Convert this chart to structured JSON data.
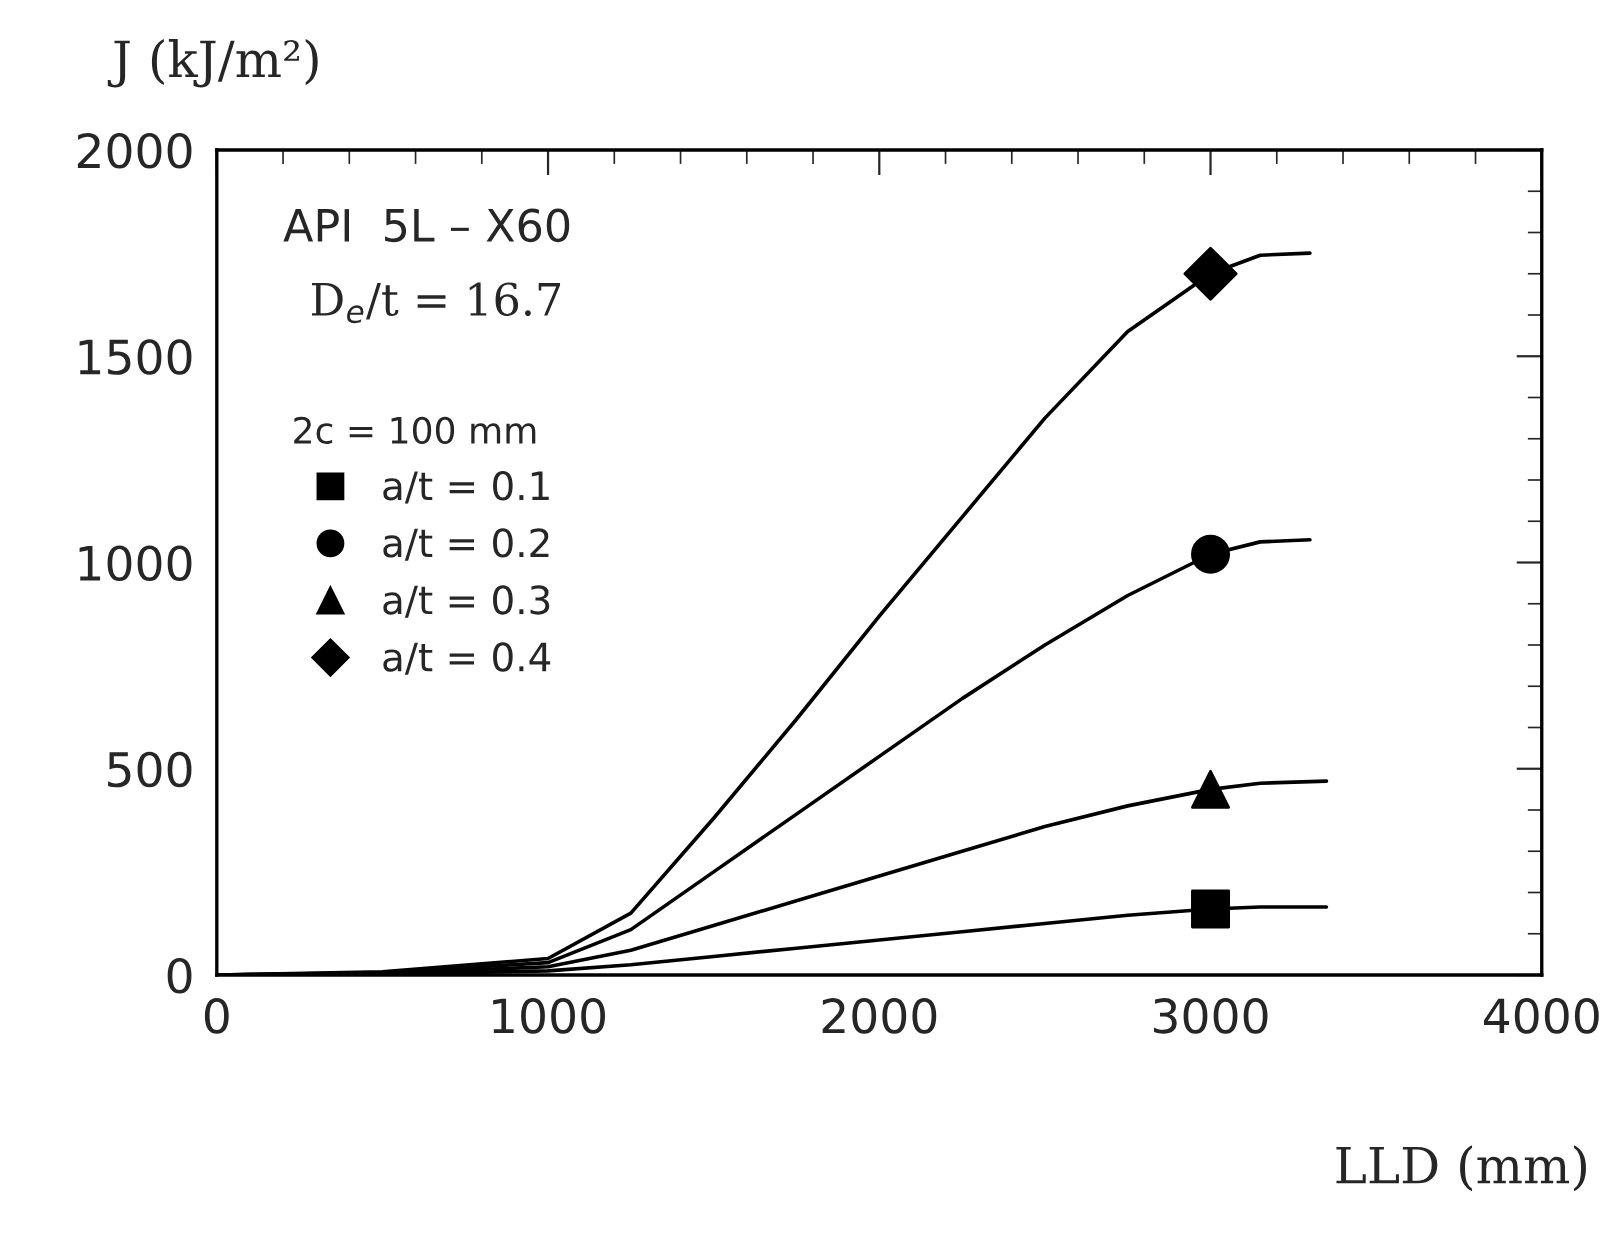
{
  "chart_data": {
    "type": "line",
    "xlabel": "LLD (mm)",
    "ylabel": "J (kJ/m²)",
    "legend_title": "2c = 100 mm",
    "xlim": [
      0,
      4000
    ],
    "xticks": [
      0,
      1000,
      2000,
      3000,
      4000
    ],
    "ylim": [
      0,
      2000
    ],
    "yticks": [
      0,
      500,
      1000,
      1500,
      2000
    ],
    "grid": false,
    "legend": "left",
    "annotations": [
      "API  5L – X60",
      "D$_{e}$/t = 16.7"
    ],
    "series": [
      {
        "color": "#000000",
        "x": [
          0,
          500,
          1000,
          1250,
          1500,
          1750,
          2000,
          2250,
          2500,
          2750,
          3000,
          3150,
          3350
        ],
        "values": [
          0,
          2,
          10,
          25,
          45,
          65,
          85,
          105,
          125,
          145,
          160,
          165,
          165
        ]
      },
      {
        "color": "#000000",
        "x": [
          0,
          500,
          1000,
          1250,
          1500,
          1750,
          2000,
          2250,
          2500,
          2750,
          3000,
          3150,
          3350
        ],
        "values": [
          0,
          4,
          20,
          60,
          120,
          180,
          240,
          300,
          360,
          410,
          450,
          465,
          470
        ]
      },
      {
        "color": "#000000",
        "x": [
          0,
          500,
          1000,
          1250,
          1500,
          1750,
          2000,
          2250,
          2500,
          2750,
          3000,
          3150,
          3300
        ],
        "values": [
          0,
          6,
          30,
          110,
          250,
          390,
          530,
          670,
          800,
          920,
          1020,
          1050,
          1055
        ]
      },
      {
        "color": "#000000",
        "x": [
          0,
          500,
          1000,
          1250,
          1500,
          1750,
          2000,
          2250,
          2500,
          2750,
          3000,
          3150,
          3300
        ],
        "values": [
          0,
          8,
          40,
          150,
          380,
          620,
          870,
          1110,
          1350,
          1560,
          1700,
          1745,
          1750
        ]
      },
      {
        "type": "scatter",
        "name": "a/t = 0.1",
        "marker": "square",
        "color": "#000000",
        "x": [
          3000
        ],
        "values": [
          160
        ]
      },
      {
        "type": "scatter",
        "name": "a/t = 0.2",
        "marker": "circle",
        "color": "#000000",
        "x": [
          3000
        ],
        "values": [
          1020
        ]
      },
      {
        "type": "scatter",
        "name": "a/t = 0.3",
        "marker": "triangle",
        "color": "#000000",
        "x": [
          3000
        ],
        "values": [
          450
        ]
      },
      {
        "type": "scatter",
        "name": "a/t = 0.4",
        "marker": "diamond",
        "color": "#000000",
        "x": [
          3000
        ],
        "values": [
          1700
        ]
      }
    ]
  }
}
